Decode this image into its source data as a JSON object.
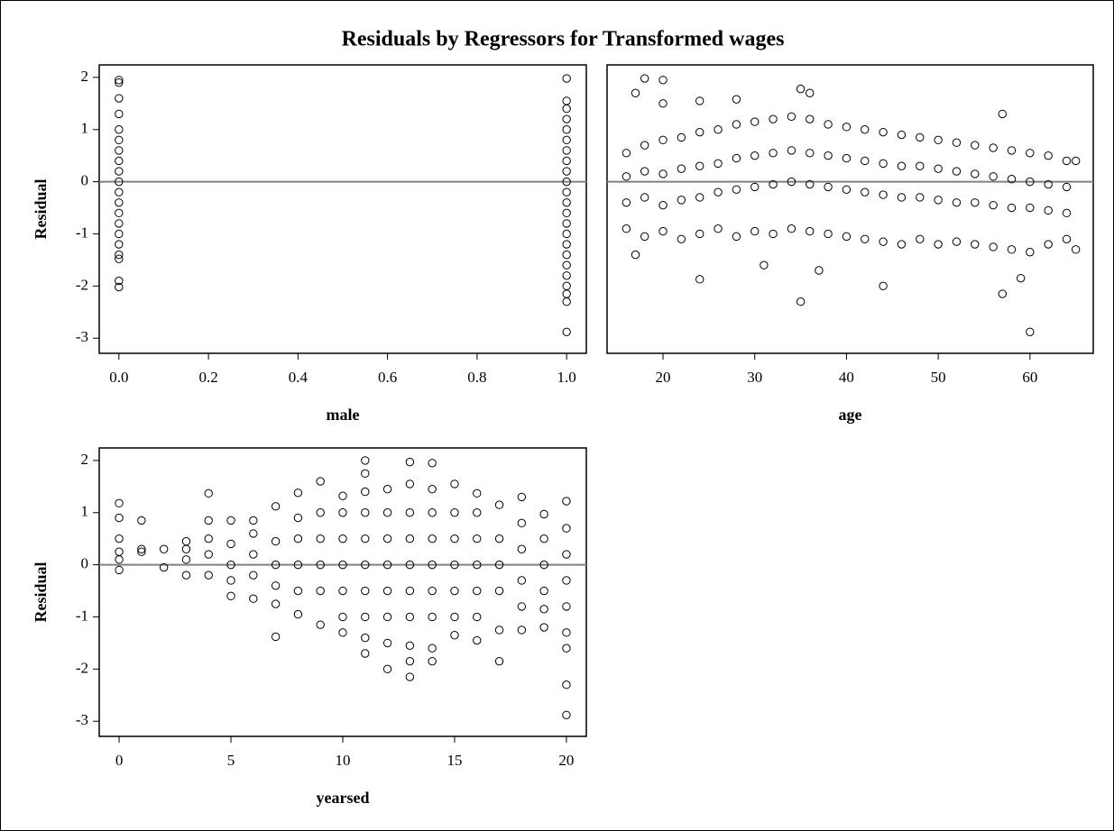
{
  "title": "Residuals by Regressors for Transformed wages",
  "chart_data": [
    {
      "type": "scatter",
      "x_label": "male",
      "y_label": "Residual",
      "refline": 0,
      "color": "#000000",
      "refline_color": "#808080",
      "xlim": [
        -0.044,
        1.044
      ],
      "ylim": [
        -3.29,
        2.24
      ],
      "xticks": [
        {
          "value": 0,
          "label": "0.0"
        },
        {
          "value": 0.2,
          "label": "0.2"
        },
        {
          "value": 0.4,
          "label": "0.4"
        },
        {
          "value": 0.6,
          "label": "0.6"
        },
        {
          "value": 0.8,
          "label": "0.8"
        },
        {
          "value": 1,
          "label": "1.0"
        }
      ],
      "yticks": [
        -3,
        -2,
        -1,
        0,
        1,
        2
      ],
      "x": [
        0,
        0,
        0,
        0,
        0,
        0,
        0,
        0,
        0,
        0,
        0,
        0,
        0,
        0,
        0,
        0,
        0,
        0,
        0,
        0,
        1,
        1,
        1,
        1,
        1,
        1,
        1,
        1,
        1,
        1,
        1,
        1,
        1,
        1,
        1,
        1,
        1,
        1,
        1,
        1,
        1,
        1,
        1
      ],
      "y": [
        1.95,
        1.9,
        1.6,
        1.3,
        1.0,
        0.8,
        0.6,
        0.4,
        0.2,
        0,
        -0.2,
        -0.4,
        -0.6,
        -0.8,
        -1.0,
        -1.2,
        -1.4,
        -1.48,
        -1.9,
        -2.02,
        1.98,
        1.55,
        1.4,
        1.2,
        1.0,
        0.8,
        0.6,
        0.4,
        0.2,
        0,
        -0.2,
        -0.4,
        -0.6,
        -0.8,
        -1.0,
        -1.2,
        -1.4,
        -1.6,
        -1.8,
        -2.0,
        -2.15,
        -2.3,
        -2.88
      ]
    },
    {
      "type": "scatter",
      "x_label": "age",
      "refline": 0,
      "color": "#000000",
      "refline_color": "#808080",
      "xlim": [
        13.9,
        66.9
      ],
      "ylim": [
        -3.29,
        2.24
      ],
      "xticks": [
        20,
        30,
        40,
        50,
        60
      ],
      "x": [
        16,
        16,
        16,
        16,
        18,
        18,
        18,
        18,
        20,
        20,
        20,
        20,
        22,
        22,
        22,
        22,
        24,
        24,
        24,
        24,
        26,
        26,
        26,
        26,
        28,
        28,
        28,
        28,
        30,
        30,
        30,
        30,
        32,
        32,
        32,
        32,
        34,
        34,
        34,
        34,
        36,
        36,
        36,
        36,
        38,
        38,
        38,
        38,
        40,
        40,
        40,
        40,
        42,
        42,
        42,
        42,
        44,
        44,
        44,
        44,
        46,
        46,
        46,
        46,
        48,
        48,
        48,
        48,
        50,
        50,
        50,
        50,
        52,
        52,
        52,
        52,
        54,
        54,
        54,
        54,
        56,
        56,
        56,
        56,
        58,
        58,
        58,
        58,
        60,
        60,
        60,
        60,
        62,
        62,
        62,
        62,
        64,
        64,
        64,
        64,
        18,
        20,
        20,
        17,
        24,
        28,
        35,
        36,
        17,
        24,
        31,
        35,
        37,
        44,
        57,
        59,
        60,
        57,
        65,
        65
      ],
      "y": [
        -0.9,
        -0.4,
        0.1,
        0.55,
        -1.05,
        -0.3,
        0.2,
        0.7,
        -0.95,
        -0.45,
        0.15,
        0.8,
        -1.1,
        -0.35,
        0.25,
        0.85,
        -1.0,
        -0.3,
        0.3,
        0.95,
        -0.9,
        -0.2,
        0.35,
        1.0,
        -1.05,
        -0.15,
        0.45,
        1.1,
        -0.95,
        -0.1,
        0.5,
        1.15,
        -1.0,
        -0.05,
        0.55,
        1.2,
        -0.9,
        0,
        0.6,
        1.25,
        -0.95,
        -0.05,
        0.55,
        1.2,
        -1.0,
        -0.1,
        0.5,
        1.1,
        -1.05,
        -0.15,
        0.45,
        1.05,
        -1.1,
        -0.2,
        0.4,
        1.0,
        -1.15,
        -0.25,
        0.35,
        0.95,
        -1.2,
        -0.3,
        0.3,
        0.9,
        -1.1,
        -0.3,
        0.3,
        0.85,
        -1.2,
        -0.35,
        0.25,
        0.8,
        -1.15,
        -0.4,
        0.2,
        0.75,
        -1.2,
        -0.4,
        0.15,
        0.7,
        -1.25,
        -0.45,
        0.1,
        0.65,
        -1.3,
        -0.5,
        0.05,
        0.6,
        -1.35,
        -0.5,
        0.0,
        0.55,
        -1.2,
        -0.55,
        -0.05,
        0.5,
        -1.1,
        -0.6,
        -0.1,
        0.4,
        1.98,
        1.95,
        1.5,
        1.7,
        1.55,
        1.58,
        1.78,
        1.7,
        -1.4,
        -1.87,
        -1.6,
        -2.3,
        -1.7,
        -2.0,
        -2.15,
        -1.85,
        -2.88,
        1.3,
        0.4,
        -1.3
      ]
    },
    {
      "type": "scatter",
      "x_label": "yearsed",
      "y_label": "Residual",
      "refline": 0,
      "color": "#000000",
      "refline_color": "#808080",
      "xlim": [
        -0.89,
        20.89
      ],
      "ylim": [
        -3.29,
        2.24
      ],
      "xticks": [
        0,
        5,
        10,
        15,
        20
      ],
      "yticks": [
        -3,
        -2,
        -1,
        0,
        1,
        2
      ],
      "x": [
        0,
        0,
        0,
        0,
        0,
        0,
        1,
        1,
        1,
        2,
        2,
        3,
        3,
        3,
        3,
        4,
        4,
        4,
        4,
        4,
        5,
        5,
        5,
        5,
        5,
        6,
        6,
        6,
        6,
        6,
        7,
        7,
        7,
        7,
        7,
        7,
        8,
        8,
        8,
        8,
        8,
        8,
        9,
        9,
        9,
        9,
        9,
        9,
        10,
        10,
        10,
        10,
        10,
        10,
        10,
        11,
        11,
        11,
        11,
        11,
        11,
        11,
        11,
        11,
        11,
        12,
        12,
        12,
        12,
        12,
        12,
        12,
        12,
        13,
        13,
        13,
        13,
        13,
        13,
        13,
        13,
        13,
        13,
        14,
        14,
        14,
        14,
        14,
        14,
        14,
        14,
        14,
        15,
        15,
        15,
        15,
        15,
        15,
        15,
        16,
        16,
        16,
        16,
        16,
        16,
        16,
        17,
        17,
        17,
        17,
        17,
        17,
        18,
        18,
        18,
        18,
        18,
        18,
        19,
        19,
        19,
        19,
        19,
        19,
        20,
        20,
        20,
        20,
        20,
        20,
        20,
        20,
        20
      ],
      "y": [
        1.18,
        0.9,
        0.5,
        0.25,
        0.1,
        -0.1,
        0.85,
        0.3,
        0.25,
        0.3,
        -0.05,
        0.45,
        0.3,
        0.1,
        -0.2,
        1.37,
        0.85,
        0.5,
        0.2,
        -0.2,
        0.85,
        0.4,
        0,
        -0.3,
        -0.6,
        0.85,
        0.6,
        0.2,
        -0.2,
        -0.65,
        1.12,
        0.45,
        0,
        -0.4,
        -0.75,
        -1.38,
        1.38,
        0.9,
        0.5,
        0,
        -0.5,
        -0.95,
        1.6,
        1.0,
        0.5,
        0,
        -0.5,
        -1.15,
        1.32,
        1.0,
        0.5,
        0,
        -0.5,
        -1.0,
        -1.3,
        2.0,
        1.75,
        1.4,
        1.0,
        0.5,
        0,
        -0.5,
        -1.0,
        -1.4,
        -1.7,
        1.45,
        1.0,
        0.5,
        0,
        -0.5,
        -1.0,
        -1.5,
        -2.0,
        1.97,
        1.55,
        1.0,
        0.5,
        0,
        -0.5,
        -1.0,
        -1.55,
        -1.85,
        -2.15,
        1.95,
        1.45,
        1.0,
        0.5,
        0,
        -0.5,
        -1.0,
        -1.6,
        -1.85,
        1.55,
        1.0,
        0.5,
        0,
        -0.5,
        -1.0,
        -1.35,
        1.37,
        1.0,
        0.5,
        0,
        -0.5,
        -1.0,
        -1.45,
        1.15,
        0.5,
        0,
        -0.5,
        -1.25,
        -1.85,
        1.3,
        0.8,
        0.3,
        -0.3,
        -0.8,
        -1.25,
        0.97,
        0.5,
        0,
        -0.5,
        -0.85,
        -1.2,
        1.22,
        0.7,
        0.2,
        -0.3,
        -0.8,
        -1.3,
        -1.6,
        -2.3,
        -2.88
      ]
    }
  ]
}
